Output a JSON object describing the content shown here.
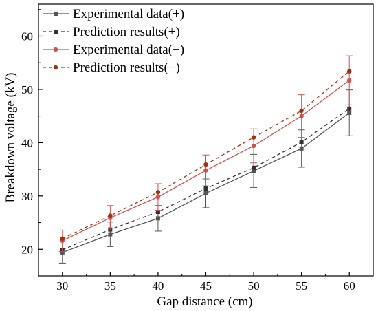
{
  "chart_data": {
    "type": "line",
    "xlabel": "Gap distance (cm)",
    "ylabel": "Breakdown voltage (kV)",
    "xlim": [
      27.5,
      62.5
    ],
    "ylim": [
      15,
      66
    ],
    "x_ticks": [
      "30",
      "35",
      "40",
      "45",
      "50",
      "55",
      "60"
    ],
    "y_ticks": [
      "20",
      "30",
      "40",
      "50",
      "60"
    ],
    "grid": false,
    "legend_position": "top-left",
    "x": [
      30,
      35,
      40,
      45,
      50,
      55,
      60
    ],
    "series": [
      {
        "name": "Experimental data(+)",
        "color": "#555555",
        "dash": "solid",
        "marker": "square",
        "values": [
          19.4,
          22.8,
          25.8,
          30.5,
          34.7,
          38.9,
          45.6
        ],
        "error": [
          2.0,
          2.3,
          2.4,
          2.7,
          3.1,
          3.5,
          4.3
        ]
      },
      {
        "name": "Prediction results(+)",
        "color": "#333333",
        "dash": "dashed",
        "marker": "square",
        "values": [
          19.9,
          23.7,
          27.0,
          31.4,
          35.3,
          40.1,
          46.4
        ]
      },
      {
        "name": "Experimental data(−)",
        "color": "#d45050",
        "dash": "solid",
        "marker": "circle",
        "values": [
          21.6,
          25.9,
          29.8,
          34.8,
          39.4,
          45.0,
          51.7
        ],
        "error": [
          2.0,
          2.3,
          2.5,
          2.9,
          3.2,
          4.0,
          4.6
        ]
      },
      {
        "name": "Prediction results(−)",
        "color": "#a03010",
        "dash": "dashed",
        "marker": "circle",
        "values": [
          22.0,
          26.3,
          30.7,
          35.9,
          41.0,
          46.0,
          53.4
        ]
      }
    ]
  }
}
